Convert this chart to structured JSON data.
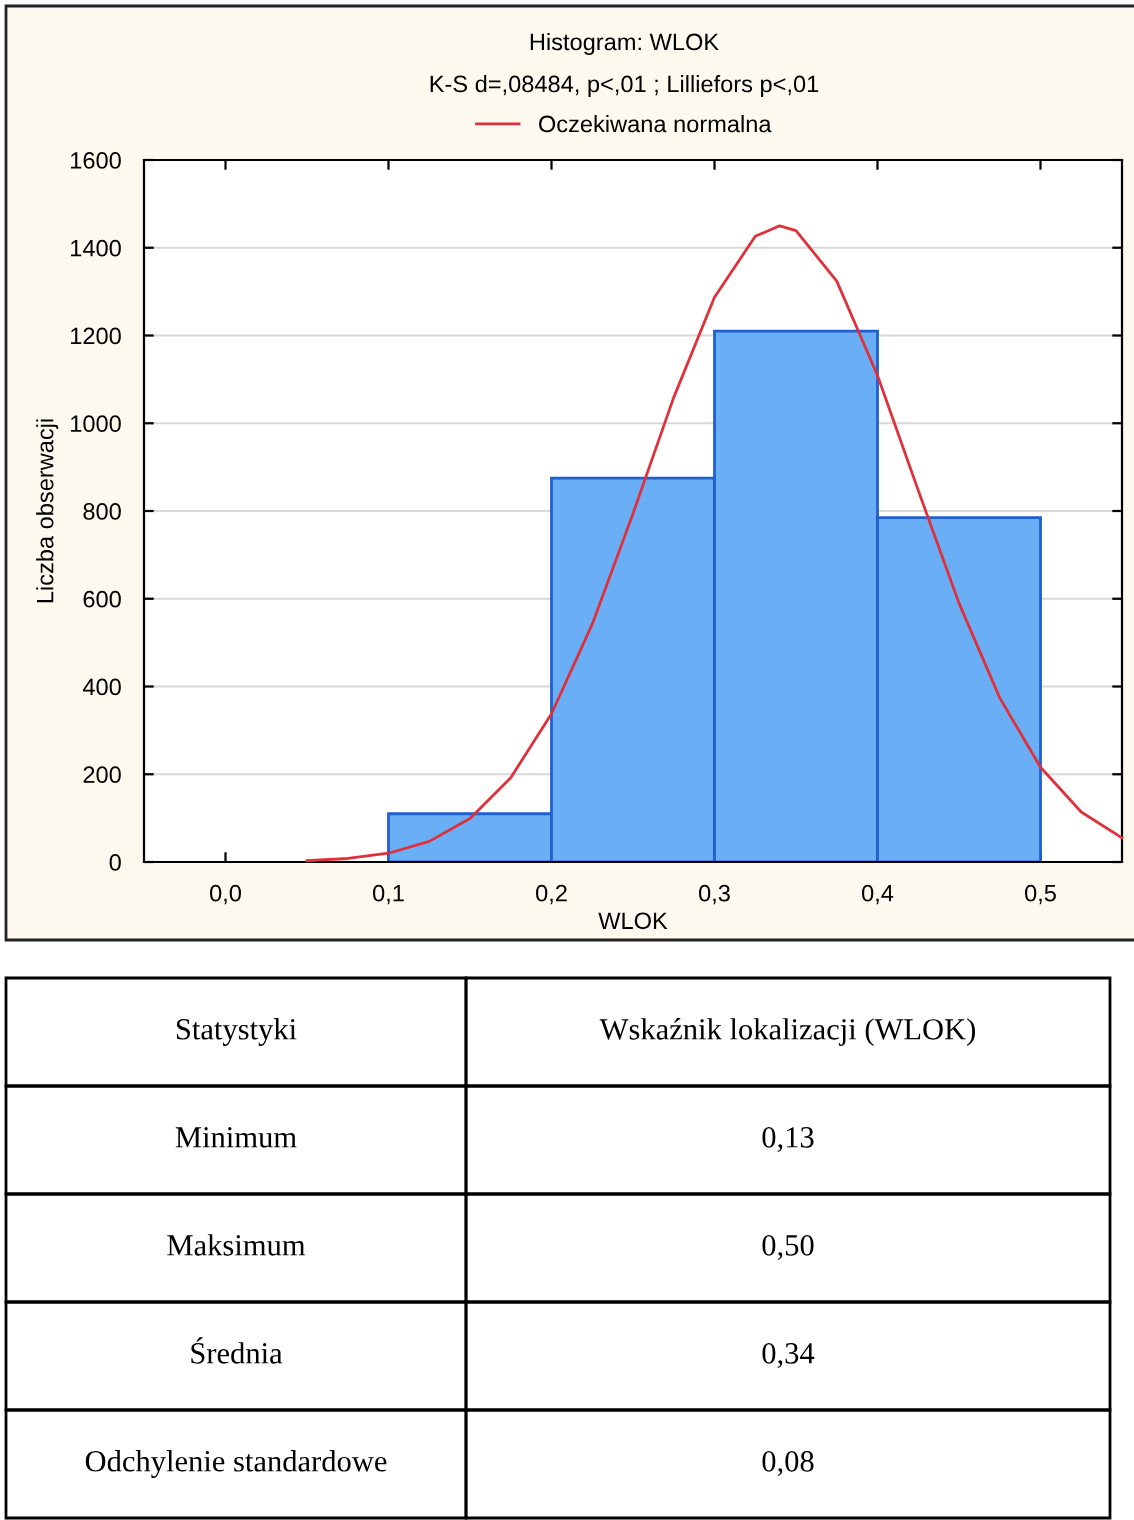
{
  "chart_data": {
    "type": "histogram",
    "title": "Histogram: WLOK",
    "subtitle": "K-S d=,08484, p<,01 ; Lilliefors p<,01",
    "xlabel": "WLOK",
    "ylabel": "Liczba obserwacji",
    "bins": [
      0.1,
      0.2,
      0.3,
      0.4,
      0.5
    ],
    "values": [
      110,
      875,
      1210,
      785
    ],
    "color": "#6aaef5",
    "series": [
      {
        "type": "line",
        "name": "Oczekiwana normalna",
        "color": "#e0303a",
        "x": [
          0.05,
          0.075,
          0.1,
          0.125,
          0.15,
          0.175,
          0.2,
          0.225,
          0.25,
          0.275,
          0.3,
          0.325,
          0.34,
          0.35,
          0.375,
          0.4,
          0.425,
          0.45,
          0.475,
          0.5,
          0.525,
          0.55
        ],
        "values": [
          3,
          8,
          20,
          47,
          99,
          192,
          338,
          542,
          794,
          1059,
          1287,
          1426,
          1450,
          1439,
          1324,
          1109,
          847,
          590,
          374,
          216,
          114,
          55
        ]
      }
    ],
    "xlim": [
      -0.05,
      0.55
    ],
    "ylim": [
      0,
      1600
    ],
    "xticks": [
      {
        "value": 0,
        "label": "0,0"
      },
      {
        "value": 0.1,
        "label": "0,1"
      },
      {
        "value": 0.2,
        "label": "0,2"
      },
      {
        "value": 0.3,
        "label": "0,3"
      },
      {
        "value": 0.4,
        "label": "0,4"
      },
      {
        "value": 0.5,
        "label": "0,5"
      }
    ],
    "yticks": [
      0,
      200,
      400,
      600,
      800,
      1000,
      1200,
      1400,
      1600
    ],
    "grid": "y",
    "legend": "top",
    "annotations": [
      "Statystyki",
      "Wskaźnik lokalizacji (WLOK)",
      "Minimum",
      "0,13",
      "Maksimum",
      "0,50",
      "Średnia",
      "0,34",
      "Odchylenie standardowe",
      "0,08"
    ]
  }
}
